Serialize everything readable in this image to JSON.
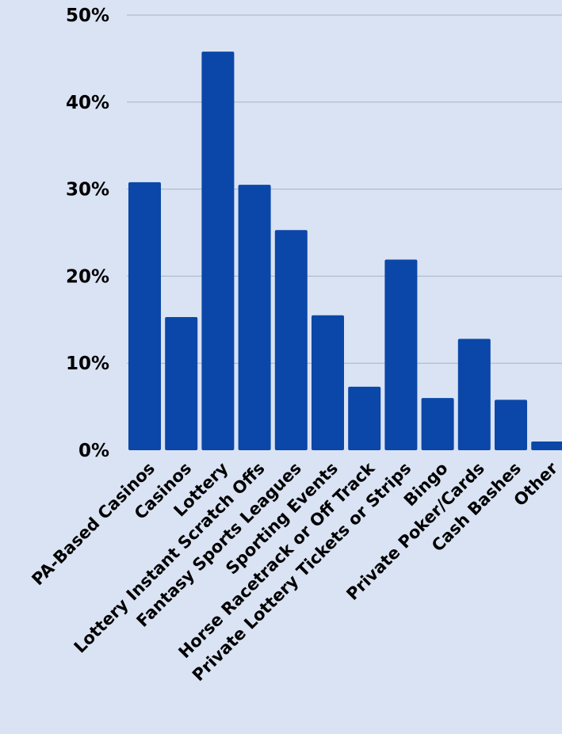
{
  "colors": {
    "background": "#dae3f3",
    "bar": "#0a47a8",
    "gridline": "#a6b3c8",
    "text": "#000000"
  },
  "chart_data": {
    "type": "bar",
    "title": "",
    "xlabel": "",
    "ylabel": "",
    "ylim": [
      0,
      50
    ],
    "y_unit": "%",
    "y_ticks": [
      "0%",
      "10%",
      "20%",
      "30%",
      "40%",
      "50%"
    ],
    "y_tick_values": [
      0,
      10,
      20,
      30,
      40,
      50
    ],
    "grid": true,
    "legend": "none",
    "categories": [
      "PA-Based Casinos",
      "Casinos",
      "Lottery",
      "Lottery Instant Scratch Offs",
      "Fantasy Sports Leagues",
      "Sporting Events",
      "Horse Racetrack or Off Track",
      "Private Lottery Tickets or Strips",
      "Bingo",
      "Private Poker/Cards",
      "Cash Bashes",
      "Other"
    ],
    "values": [
      30.8,
      15.3,
      45.8,
      30.5,
      25.3,
      15.5,
      7.3,
      21.9,
      6.0,
      12.8,
      5.8,
      1.0
    ]
  }
}
